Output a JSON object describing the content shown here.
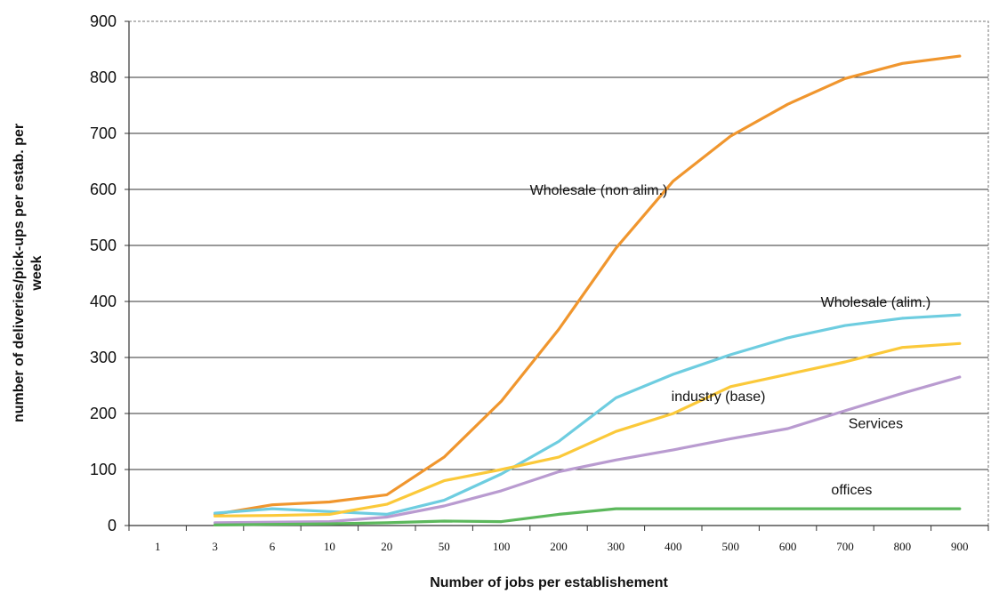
{
  "chart_data": {
    "type": "line",
    "title": "",
    "xlabel": "Number of jobs per establishement",
    "ylabel": "number of deliveries/pick-ups per estab. per week",
    "ylabel_lines": [
      "number of deliveries/pick-ups per estab. per",
      "week"
    ],
    "ylim": [
      0,
      900
    ],
    "yticks": [
      "0",
      "100",
      "200",
      "300",
      "400",
      "500",
      "600",
      "700",
      "800",
      "900"
    ],
    "categories": [
      "1",
      "3",
      "6",
      "10",
      "20",
      "50",
      "100",
      "200",
      "300",
      "400",
      "500",
      "600",
      "700",
      "800",
      "900"
    ],
    "grid": true,
    "legend": "inline labels",
    "series": [
      {
        "name": "Wholesale (non alim.)",
        "color": "#f0962e",
        "values": [
          null,
          20,
          37,
          42,
          55,
          122,
          222,
          350,
          495,
          615,
          695,
          752,
          798,
          825,
          838
        ]
      },
      {
        "name": "Wholesale (alim.)",
        "color": "#6ecde0",
        "values": [
          null,
          22,
          30,
          25,
          20,
          45,
          92,
          150,
          228,
          270,
          305,
          335,
          357,
          370,
          376
        ]
      },
      {
        "name": "industry (base)",
        "color": "#fbc93a",
        "values": [
          null,
          17,
          18,
          20,
          38,
          80,
          100,
          122,
          168,
          200,
          248,
          270,
          292,
          318,
          325
        ]
      },
      {
        "name": "Services",
        "color": "#b99bd0",
        "values": [
          null,
          5,
          6,
          7,
          15,
          35,
          62,
          96,
          117,
          135,
          155,
          173,
          205,
          236,
          265
        ]
      },
      {
        "name": "offices",
        "color": "#5cb85c",
        "values": [
          null,
          1,
          2,
          3,
          5,
          8,
          7,
          20,
          30,
          30,
          30,
          30,
          30,
          30,
          30
        ]
      }
    ]
  }
}
